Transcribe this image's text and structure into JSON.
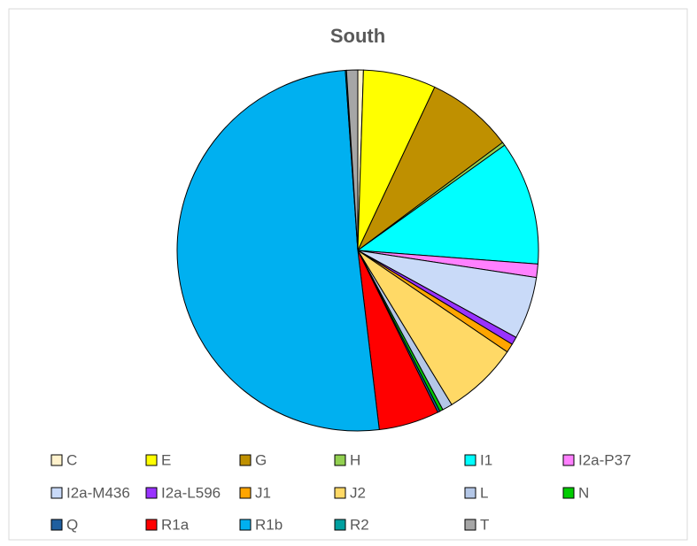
{
  "chart_data": {
    "type": "pie",
    "title": "South",
    "categories": [
      "C",
      "E",
      "G",
      "H",
      "I1",
      "I2a-P37",
      "I2a-M436",
      "I2a-L596",
      "J1",
      "J2",
      "L",
      "N",
      "Q",
      "R1a",
      "R1b",
      "R2",
      "T"
    ],
    "values": [
      0.5,
      6.5,
      7.8,
      0.3,
      11.1,
      1.2,
      5.6,
      0.7,
      0.8,
      6.8,
      0.9,
      0.3,
      0.2,
      5.4,
      50.8,
      0.1,
      1.0
    ],
    "colors": [
      "#fff2cc",
      "#ffff00",
      "#bf9000",
      "#92d050",
      "#00ffff",
      "#ff80ff",
      "#c9daf8",
      "#9933ff",
      "#ffa500",
      "#ffd966",
      "#b4c7e7",
      "#00cc00",
      "#1f5f9f",
      "#ff0000",
      "#00b0f0",
      "#00a0a0",
      "#a6a6a6"
    ],
    "legend": "bottom"
  }
}
